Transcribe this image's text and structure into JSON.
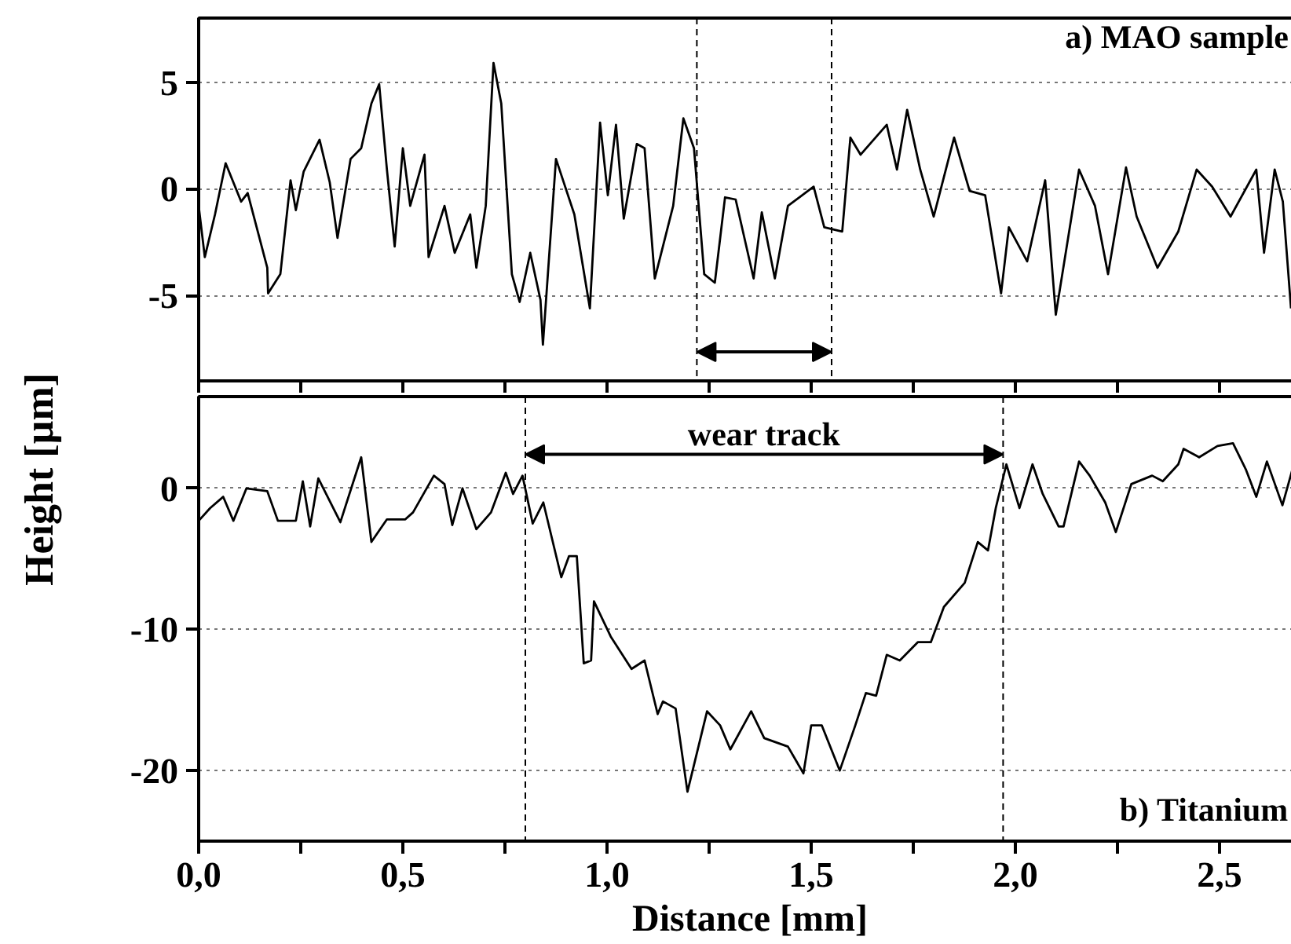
{
  "chart_data": [
    {
      "type": "line",
      "ylabel": "Height [µm]",
      "xlim": [
        0,
        2.7
      ],
      "ylim": [
        -9,
        8
      ],
      "xticks": [
        0,
        0.25,
        0.5,
        0.75,
        1,
        1.25,
        1.5,
        1.75,
        2,
        2.25,
        2.5
      ],
      "yticks": [
        {
          "value": -5,
          "label": "-5"
        },
        0,
        5
      ],
      "tick_labels": "y",
      "grid": "y",
      "marker": "none",
      "line_style": "solid",
      "ref_lines": [
        {
          "axis": "x",
          "value": 1.22,
          "label": null,
          "color": "#000000",
          "line_style": "dashed"
        },
        {
          "axis": "x",
          "value": 1.55,
          "label": null,
          "color": "#000000",
          "line_style": "dashed"
        }
      ],
      "annotations": [
        "a) MAO sample"
      ],
      "series": [
        {
          "color": "#000000",
          "x": [
            0.0,
            0.015,
            0.04,
            0.066,
            0.104,
            0.12,
            0.168,
            0.17,
            0.2,
            0.225,
            0.238,
            0.257,
            0.296,
            0.321,
            0.34,
            0.372,
            0.398,
            0.423,
            0.442,
            0.461,
            0.48,
            0.5,
            0.518,
            0.553,
            0.563,
            0.602,
            0.627,
            0.665,
            0.68,
            0.703,
            0.722,
            0.741,
            0.767,
            0.786,
            0.812,
            0.837,
            0.843,
            0.875,
            0.92,
            0.958,
            0.983,
            1.002,
            1.022,
            1.041,
            1.073,
            1.092,
            1.117,
            1.162,
            1.187,
            1.213,
            1.238,
            1.264,
            1.289,
            1.315,
            1.359,
            1.379,
            1.411,
            1.443,
            1.506,
            1.532,
            1.576,
            1.596,
            1.621,
            1.685,
            1.71,
            1.735,
            1.767,
            1.8,
            1.85,
            1.888,
            1.926,
            1.965,
            1.984,
            2.029,
            2.073,
            2.099,
            2.156,
            2.195,
            2.227,
            2.271,
            2.297,
            2.348,
            2.399,
            2.444,
            2.482,
            2.527,
            2.59,
            2.609,
            2.635,
            2.655,
            2.675
          ],
          "values": [
            -0.8,
            -3.2,
            -1.2,
            1.2,
            -0.6,
            -0.2,
            -3.7,
            -4.9,
            -4.0,
            0.4,
            -1.0,
            0.8,
            2.3,
            0.3,
            -2.3,
            1.4,
            1.9,
            4.0,
            4.9,
            0.9,
            -2.7,
            1.9,
            -0.8,
            1.6,
            -3.2,
            -0.8,
            -3.0,
            -1.2,
            -3.7,
            -0.8,
            5.9,
            4.0,
            -4.0,
            -5.3,
            -3.0,
            -5.2,
            -7.3,
            1.4,
            -1.2,
            -5.6,
            3.1,
            -0.3,
            3.0,
            -1.4,
            2.1,
            1.9,
            -4.2,
            -0.8,
            3.3,
            1.9,
            -4.0,
            -4.4,
            -0.4,
            -0.5,
            -4.2,
            -1.1,
            -4.2,
            -0.8,
            0.1,
            -1.8,
            -2.0,
            2.4,
            1.6,
            3.0,
            0.9,
            3.7,
            0.9,
            -1.3,
            2.4,
            -0.1,
            -0.3,
            -4.9,
            -1.8,
            -3.4,
            0.4,
            -5.9,
            0.9,
            -0.8,
            -4.0,
            1.0,
            -1.3,
            -3.7,
            -2.0,
            0.9,
            0.1,
            -1.3,
            0.9,
            -3.0,
            0.9,
            -0.6,
            -5.6
          ]
        }
      ]
    },
    {
      "type": "line",
      "xlabel": "Distance [mm]",
      "xlim": [
        0,
        2.7
      ],
      "ylim": [
        -25,
        6.5
      ],
      "xticks": [
        {
          "value": 0,
          "label": "0,0"
        },
        {
          "value": 0.25,
          "label": null
        },
        {
          "value": 0.5,
          "label": "0,5"
        },
        {
          "value": 0.75,
          "label": null
        },
        {
          "value": 1,
          "label": "1,0"
        },
        {
          "value": 1.25,
          "label": null
        },
        {
          "value": 1.5,
          "label": "1,5"
        },
        {
          "value": 1.75,
          "label": null
        },
        {
          "value": 2,
          "label": "2,0"
        },
        {
          "value": 2.25,
          "label": null
        },
        {
          "value": 2.5,
          "label": "2,5"
        }
      ],
      "yticks": [
        {
          "value": -20,
          "label": "-20"
        },
        {
          "value": -10,
          "label": "-10"
        },
        0
      ],
      "grid": "y",
      "marker": "none",
      "line_style": "solid",
      "ref_lines": [
        {
          "axis": "x",
          "value": 0.8,
          "label": null,
          "color": "#000000",
          "line_style": "dashed"
        },
        {
          "axis": "x",
          "value": 1.97,
          "label": null,
          "color": "#000000",
          "line_style": "dashed"
        }
      ],
      "annotations": [
        "wear track",
        "b) Titanium"
      ],
      "series": [
        {
          "color": "#000000",
          "x": [
            0.0,
            0.028,
            0.06,
            0.085,
            0.117,
            0.168,
            0.194,
            0.238,
            0.255,
            0.273,
            0.293,
            0.347,
            0.398,
            0.423,
            0.461,
            0.506,
            0.525,
            0.576,
            0.602,
            0.621,
            0.646,
            0.68,
            0.716,
            0.752,
            0.77,
            0.793,
            0.818,
            0.844,
            0.888,
            0.907,
            0.926,
            0.943,
            0.961,
            0.968,
            1.009,
            1.06,
            1.092,
            1.124,
            1.137,
            1.168,
            1.197,
            1.245,
            1.277,
            1.302,
            1.353,
            1.385,
            1.443,
            1.481,
            1.5,
            1.526,
            1.57,
            1.608,
            1.634,
            1.659,
            1.685,
            1.717,
            1.761,
            1.793,
            1.825,
            1.876,
            1.908,
            1.933,
            1.952,
            1.978,
            2.01,
            2.042,
            2.067,
            2.106,
            2.118,
            2.156,
            2.182,
            2.22,
            2.246,
            2.284,
            2.335,
            2.361,
            2.399,
            2.412,
            2.45,
            2.495,
            2.533,
            2.565,
            2.59,
            2.616,
            2.654,
            2.68
          ],
          "values": [
            -2.3,
            -1.4,
            -0.6,
            -2.3,
            0.0,
            -0.2,
            -2.3,
            -2.3,
            0.5,
            -2.7,
            0.7,
            -2.4,
            2.2,
            -3.8,
            -2.2,
            -2.2,
            -1.7,
            0.9,
            0.3,
            -2.6,
            0.0,
            -2.9,
            -1.7,
            1.1,
            -0.4,
            0.9,
            -2.5,
            -1.0,
            -6.3,
            -4.8,
            -4.8,
            -12.4,
            -12.2,
            -8.0,
            -10.5,
            -12.8,
            -12.2,
            -16.0,
            -15.1,
            -15.6,
            -21.5,
            -15.8,
            -16.8,
            -18.5,
            -15.8,
            -17.7,
            -18.3,
            -20.2,
            -16.8,
            -16.8,
            -20.0,
            -16.8,
            -14.5,
            -14.7,
            -11.8,
            -12.2,
            -10.9,
            -10.9,
            -8.4,
            -6.7,
            -3.8,
            -4.4,
            -1.4,
            1.7,
            -1.4,
            1.7,
            -0.4,
            -2.7,
            -2.7,
            1.9,
            0.9,
            -1.0,
            -3.1,
            0.3,
            0.9,
            0.5,
            1.7,
            2.8,
            2.2,
            3.0,
            3.2,
            1.3,
            -0.6,
            1.9,
            -1.2,
            1.5
          ]
        }
      ]
    }
  ]
}
